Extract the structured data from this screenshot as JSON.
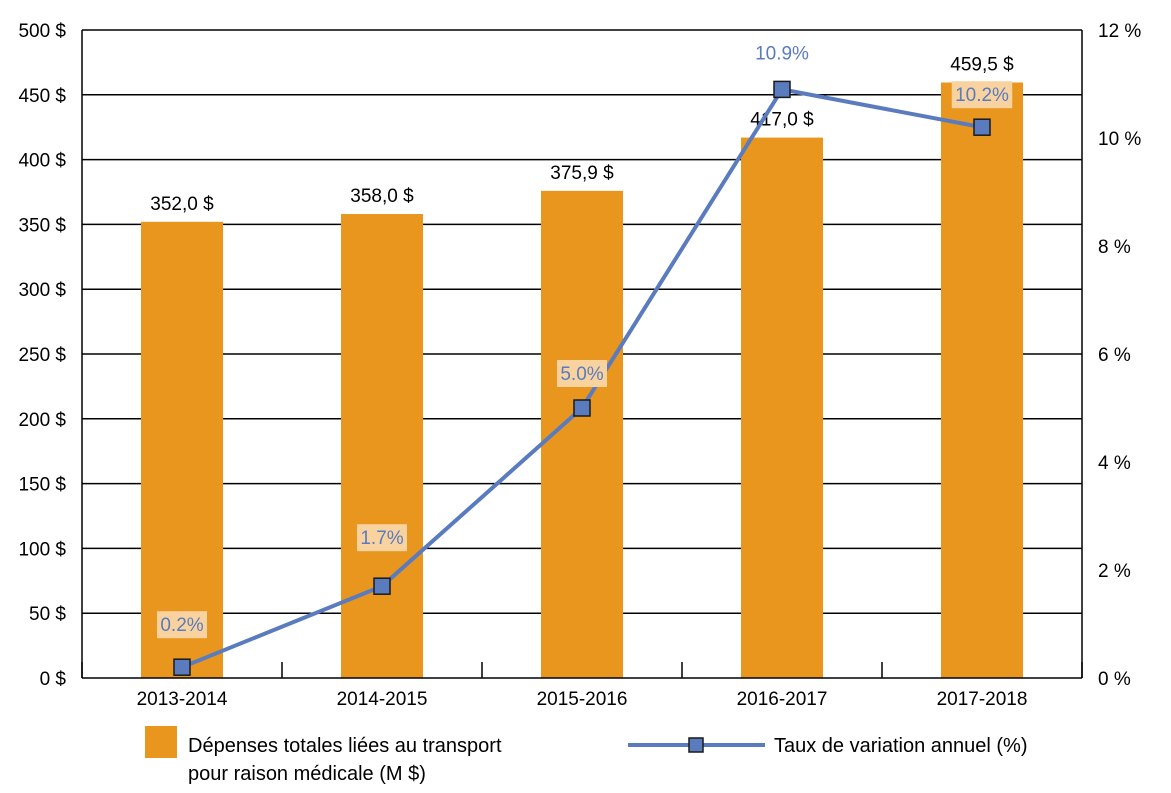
{
  "chart_data": {
    "type": "bar+line",
    "title": "",
    "categories": [
      "2013-2014",
      "2014-2015",
      "2015-2016",
      "2016-2017",
      "2017-2018"
    ],
    "series": [
      {
        "name": "Dépenses totales liées au transport pour raison médicale (M $)",
        "type": "bar",
        "axis": "left",
        "values": [
          352.0,
          358.0,
          375.9,
          417.0,
          459.5
        ],
        "labels": [
          "352,0 $",
          "358,0 $",
          "375,9 $",
          "417,0 $",
          "459,5 $"
        ]
      },
      {
        "name": "Taux de variation annuel (%)",
        "type": "line",
        "axis": "right",
        "values": [
          0.2,
          1.7,
          5.0,
          10.9,
          10.2
        ],
        "labels": [
          "0.2%",
          "1.7%",
          "5.0%",
          "10.9%",
          "10.2%"
        ]
      }
    ],
    "y_left": {
      "lim": [
        0,
        500
      ],
      "ticks": [
        0,
        50,
        100,
        150,
        200,
        250,
        300,
        350,
        400,
        450,
        500
      ],
      "tick_labels": [
        "0 $",
        "50 $",
        "100 $",
        "150 $",
        "200 $",
        "250 $",
        "300 $",
        "350 $",
        "400 $",
        "450 $",
        "500 $"
      ]
    },
    "y_right": {
      "lim": [
        0,
        12
      ],
      "ticks": [
        0,
        2,
        4,
        6,
        8,
        10,
        12
      ],
      "tick_labels": [
        "0 %",
        "2 %",
        "4 %",
        "6 %",
        "8 %",
        "10 %",
        "12 %"
      ]
    },
    "grid": true,
    "legend": {
      "position": "bottom",
      "bar_lines": [
        "Dépenses totales liées au transport",
        "pour raison médicale (M $)"
      ],
      "line_label": "Taux de variation annuel (%)"
    },
    "colors": {
      "bar": "#e8961e",
      "line": "#5b7bbf",
      "marker_fill": "#5b7bbf",
      "marker_stroke": "#1a1a1a",
      "label_bg": "#f8d3a0",
      "pct_text": "#5b7bbf"
    }
  }
}
